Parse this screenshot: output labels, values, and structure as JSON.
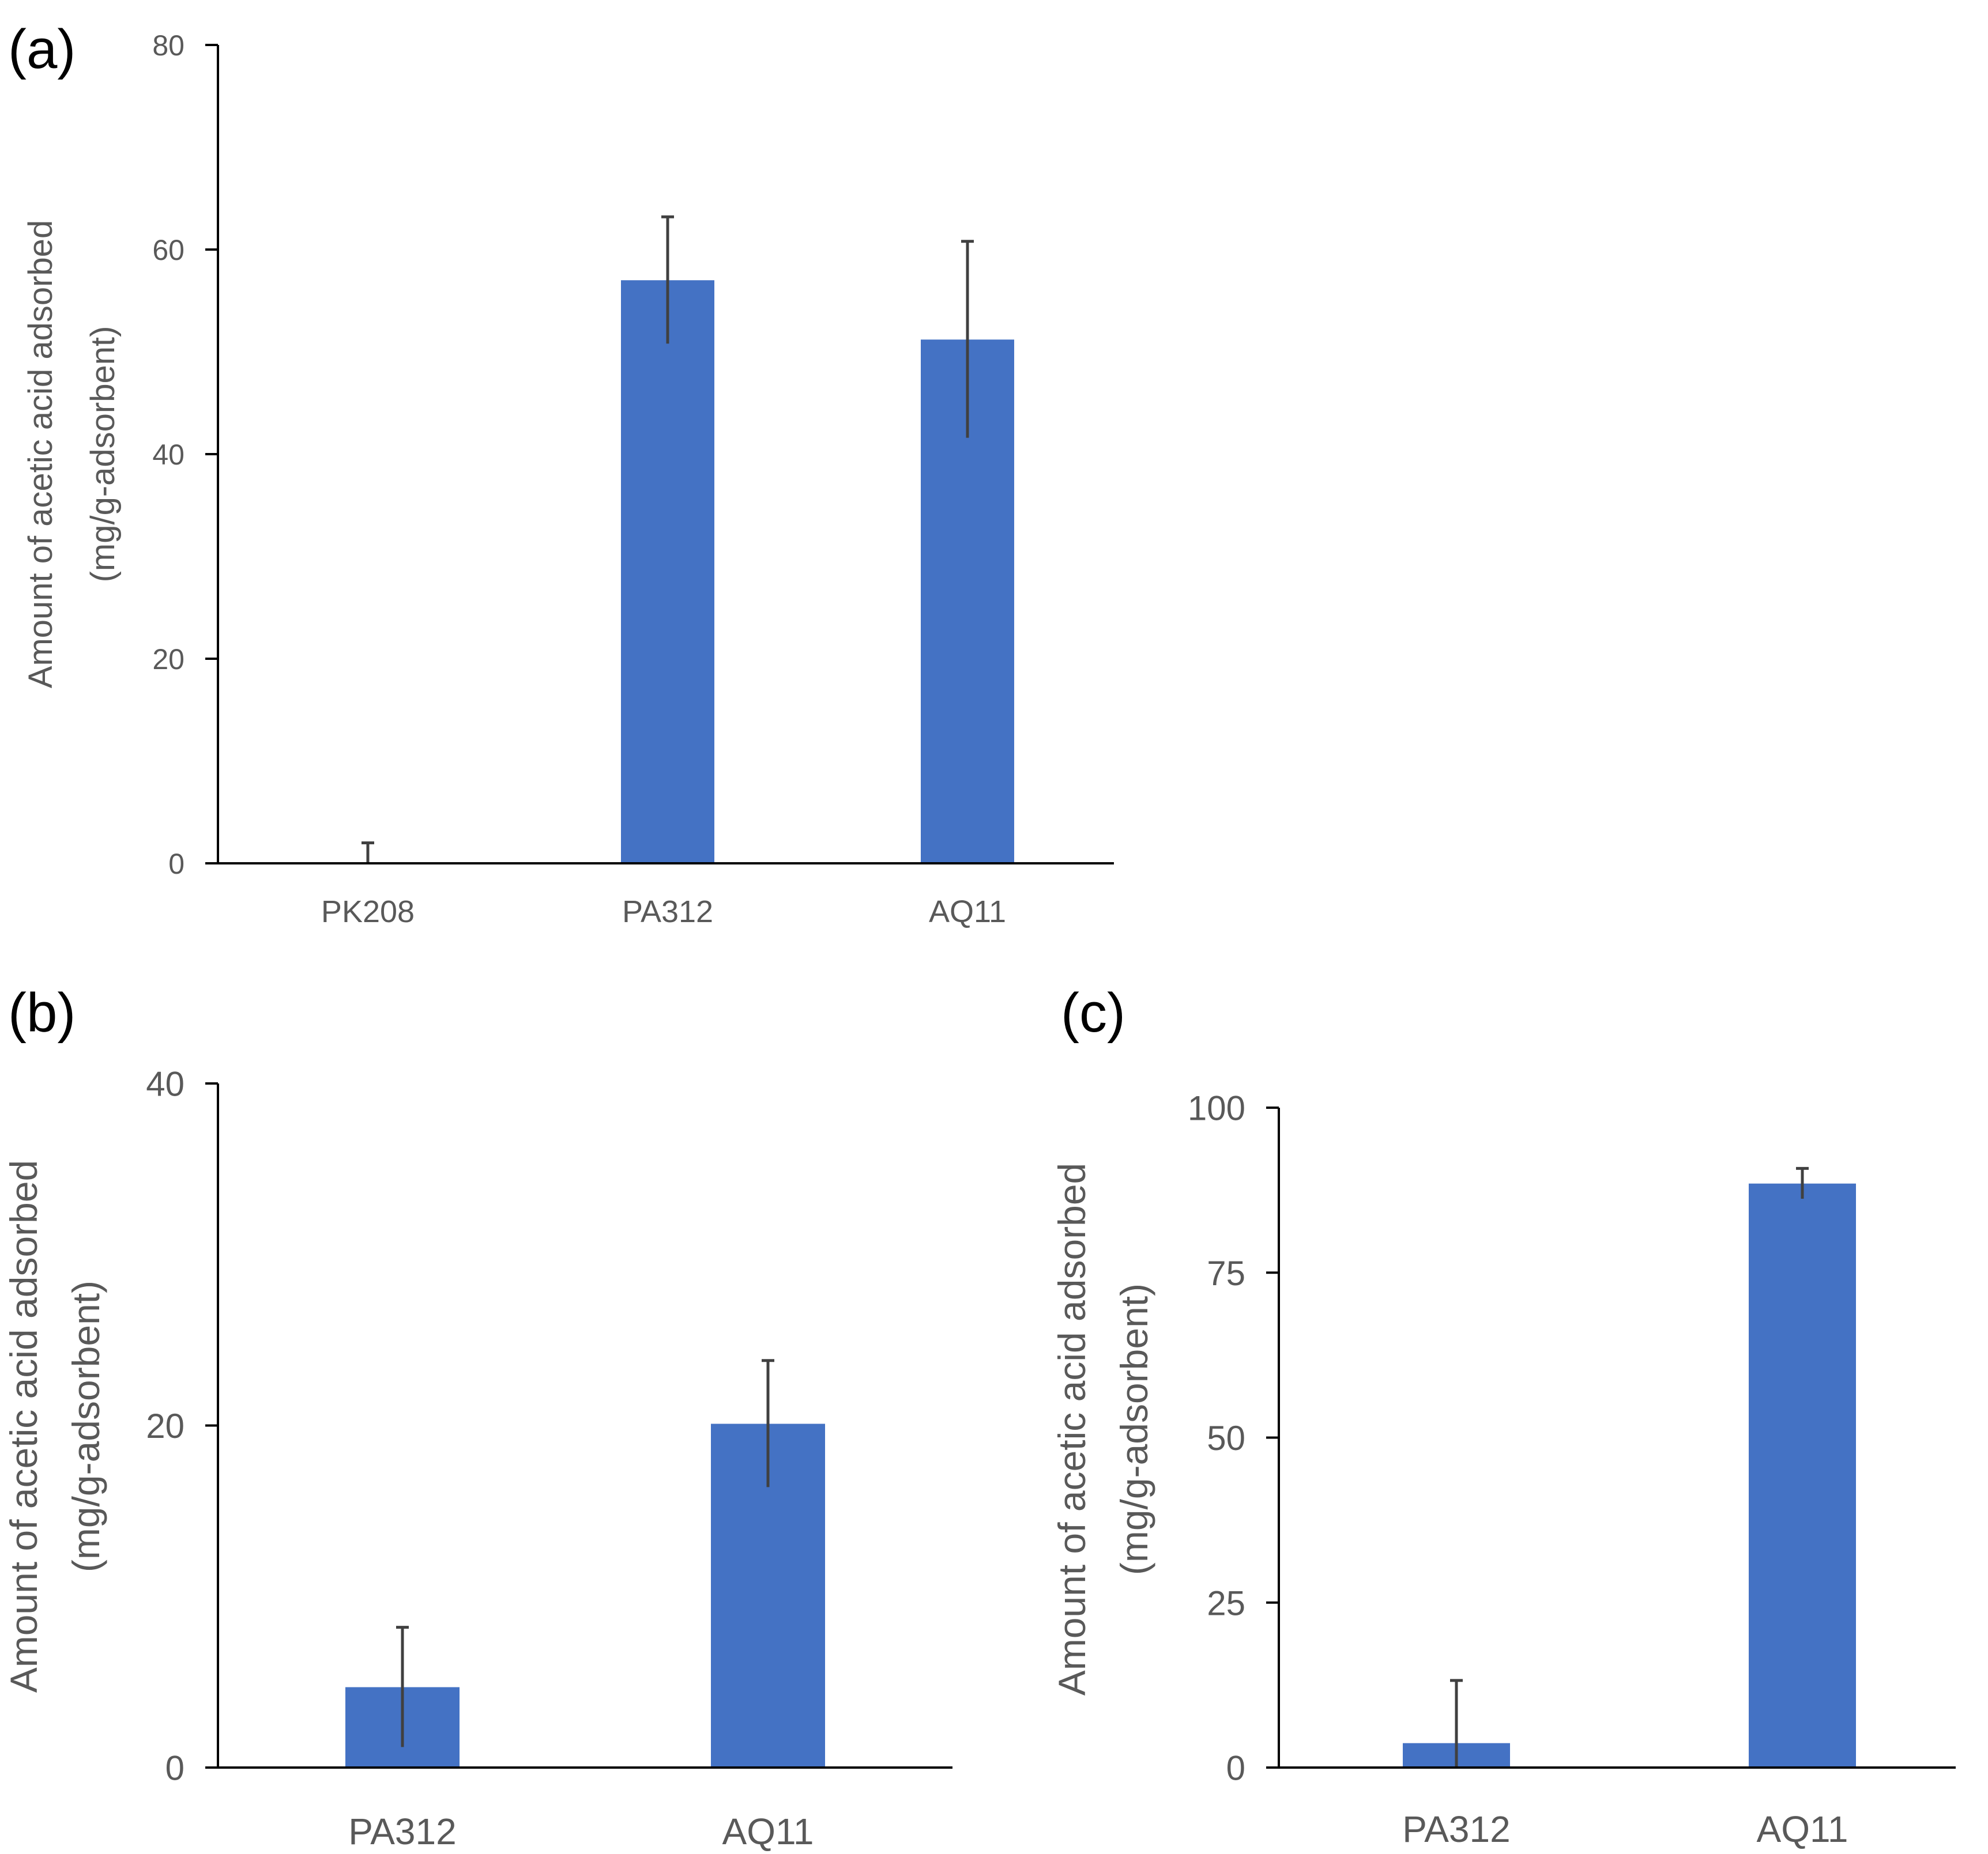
{
  "figure": {
    "panels": [
      "(a)",
      "(b)",
      "(c)"
    ]
  },
  "colors": {
    "bar": "#4472C4",
    "axis": "#000000",
    "text": "#595959",
    "error_bar": "#404040"
  },
  "chart_data": [
    {
      "panel": "(a)",
      "type": "bar",
      "categories": [
        "PK208",
        "PA312",
        "AQ11"
      ],
      "values": [
        0,
        57,
        51.2
      ],
      "errors": [
        2,
        6.2,
        9.6
      ],
      "title": "",
      "xlabel": "",
      "ylabel": [
        "Amount of acetic acid adsorbed",
        "(mg/g-adsorbent)"
      ],
      "ylim": [
        0,
        80
      ],
      "yticks": [
        0,
        20,
        40,
        60,
        80
      ],
      "grid": false
    },
    {
      "panel": "(b)",
      "type": "bar",
      "categories": [
        "PA312",
        "AQ11"
      ],
      "values": [
        4.7,
        20.1
      ],
      "errors": [
        3.5,
        3.7
      ],
      "title": "",
      "xlabel": "",
      "ylabel": [
        "Amount of acetic acid adsorbed",
        "(mg/g-adsorbent)"
      ],
      "ylim": [
        0,
        40
      ],
      "yticks": [
        0,
        20,
        40
      ],
      "grid": false
    },
    {
      "panel": "(c)",
      "type": "bar",
      "categories": [
        "PA312",
        "AQ11"
      ],
      "values": [
        3.7,
        88.5
      ],
      "errors": [
        9.5,
        2.3
      ],
      "title": "",
      "xlabel": "",
      "ylabel": [
        "Amount of acetic acid adsorbed",
        "(mg/g-adsorbent)"
      ],
      "ylim": [
        0,
        100
      ],
      "yticks": [
        0,
        25,
        50,
        75,
        100
      ],
      "grid": false
    }
  ]
}
